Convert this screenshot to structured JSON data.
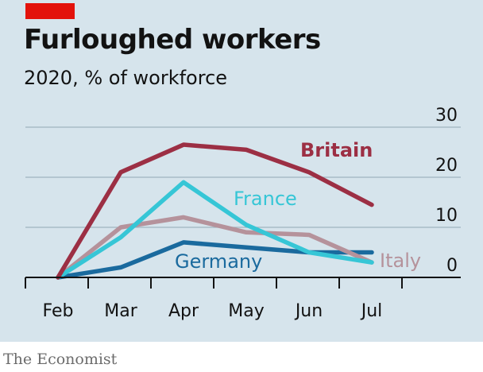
{
  "header": {
    "title": "Furloughed workers",
    "subtitle": "2020, % of workforce"
  },
  "footer": {
    "source": "The Economist"
  },
  "colors": {
    "background": "#d6e4ec",
    "brand_red": "#e3120b",
    "gridline": "#9fb3be",
    "axis": "#121212"
  },
  "chart_data": {
    "type": "line",
    "title": "Furloughed workers",
    "subtitle": "2020, % of workforce",
    "xlabel": "",
    "ylabel": "",
    "categories": [
      "Feb",
      "Mar",
      "Apr",
      "May",
      "Jun",
      "Jul"
    ],
    "yticks": [
      0,
      10,
      20,
      30
    ],
    "ylim": [
      0,
      30
    ],
    "y_axis_side": "right",
    "grid": true,
    "series": [
      {
        "name": "Britain",
        "color": "#9c2f44",
        "values": [
          0,
          21,
          26.5,
          25.5,
          21,
          14.5
        ]
      },
      {
        "name": "France",
        "color": "#36c6d6",
        "values": [
          0,
          8,
          19,
          10.5,
          5,
          3
        ]
      },
      {
        "name": "Italy",
        "color": "#b5929b",
        "values": [
          0,
          10,
          12,
          9,
          8.5,
          3
        ]
      },
      {
        "name": "Germany",
        "color": "#1a6a9e",
        "values": [
          0,
          2,
          7,
          6,
          5,
          5
        ]
      }
    ]
  }
}
